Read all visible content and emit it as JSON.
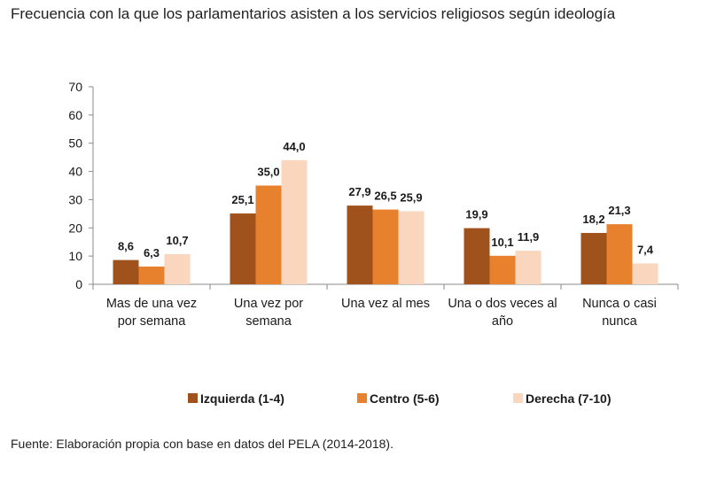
{
  "title": "Frecuencia con la que los parlamentarios asisten a los servicios religiosos según ideología",
  "source": "Fuente: Elaboración propia con base en datos del PELA (2014-2018).",
  "chart_data": {
    "type": "bar",
    "categories": [
      [
        "Mas de una vez",
        "por semana"
      ],
      [
        "Una vez por",
        "semana"
      ],
      [
        "Una vez al mes"
      ],
      [
        "Una o dos veces al",
        "año"
      ],
      [
        "Nunca o casi",
        "nunca"
      ]
    ],
    "series": [
      {
        "name": "Izquierda (1-4)",
        "color": "#A0521C",
        "values": [
          8.6,
          25.1,
          27.9,
          19.9,
          18.2
        ],
        "labels": [
          "8,6",
          "25,1",
          "27,9",
          "19,9",
          "18,2"
        ]
      },
      {
        "name": "Centro (5-6)",
        "color": "#E8812E",
        "values": [
          6.3,
          35.0,
          26.5,
          10.1,
          21.3
        ],
        "labels": [
          "6,3",
          "35,0",
          "26,5",
          "10,1",
          "21,3"
        ]
      },
      {
        "name": "Derecha (7-10)",
        "color": "#FBD6BF",
        "values": [
          10.7,
          44.0,
          25.9,
          11.9,
          7.4
        ],
        "labels": [
          "10,7",
          "44,0",
          "25,9",
          "11,9",
          "7,4"
        ]
      }
    ],
    "ylim": [
      0,
      70
    ],
    "yticks": [
      0,
      10,
      20,
      30,
      40,
      50,
      60,
      70
    ],
    "grid": false,
    "legend_position": "bottom"
  }
}
